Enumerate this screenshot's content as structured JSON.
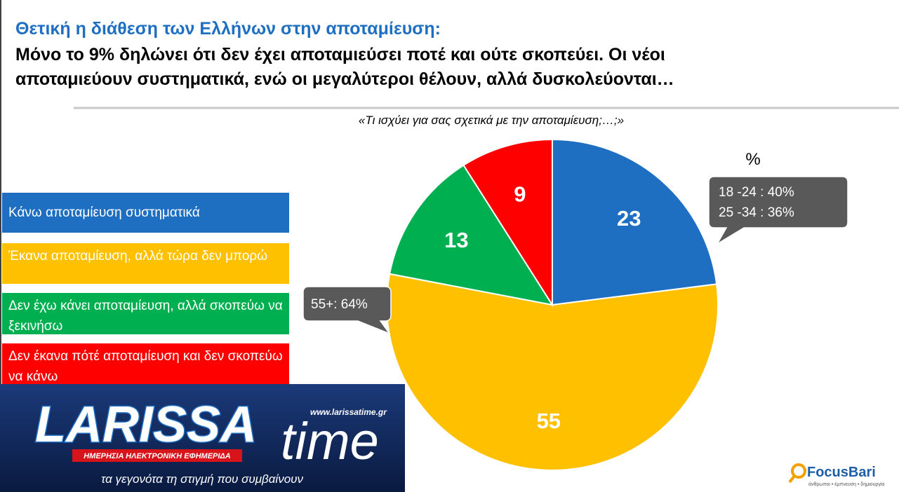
{
  "title": "Θετική η διάθεση των Ελλήνων στην αποταμίευση:",
  "subtitle": [
    "Μόνο το 9% δηλώνει ότι δεν έχει αποταμιεύσει ποτέ και ούτε σκοπεύει.  Οι νέοι",
    "αποταμιεύουν συστηματικά, ενώ οι μεγαλύτεροι θέλουν, αλλά δυσκολεύονται…"
  ],
  "chart_data": {
    "type": "pie",
    "title": "«Τι ισχύει για σας σχετικά με την αποταμίευση;…;»",
    "unit": "%",
    "categories": [
      "Κάνω αποταμίευση συστηματικά",
      "Έκανα αποταμίευση, αλλά τώρα δεν μπορώ",
      "Δεν έχω κάνει αποταμίευση, αλλά σκοπεύω να ξεκινήσω",
      "Δεν έκανα πότέ αποταμίευση και δεν σκοπεύω να κάνω"
    ],
    "values": [
      23,
      55,
      13,
      9
    ],
    "colors": [
      "#1e6fc2",
      "#ffc000",
      "#00b050",
      "#ff0000"
    ],
    "annotations": [
      [
        "18 -24 : 40%",
        "25 -34 : 36%"
      ],
      [
        "55+: 64%"
      ]
    ]
  },
  "branding": {
    "logo_main": "LARISSA",
    "logo_second": "time",
    "logo_url": "www.larissatime.gr",
    "logo_tag": "ΗΜΕΡΗΣΙΑ ΗΛΕΚΤΡΟΝΙΚΗ ΕΦΗΜΕΡΙΔΑ",
    "logo_motto": "τα γεγονότα τη στιγμή που συμβαίνουν",
    "source": "FocusBari",
    "source_tag": "άνθρωποι • έμπνευση • δημιουργία"
  }
}
